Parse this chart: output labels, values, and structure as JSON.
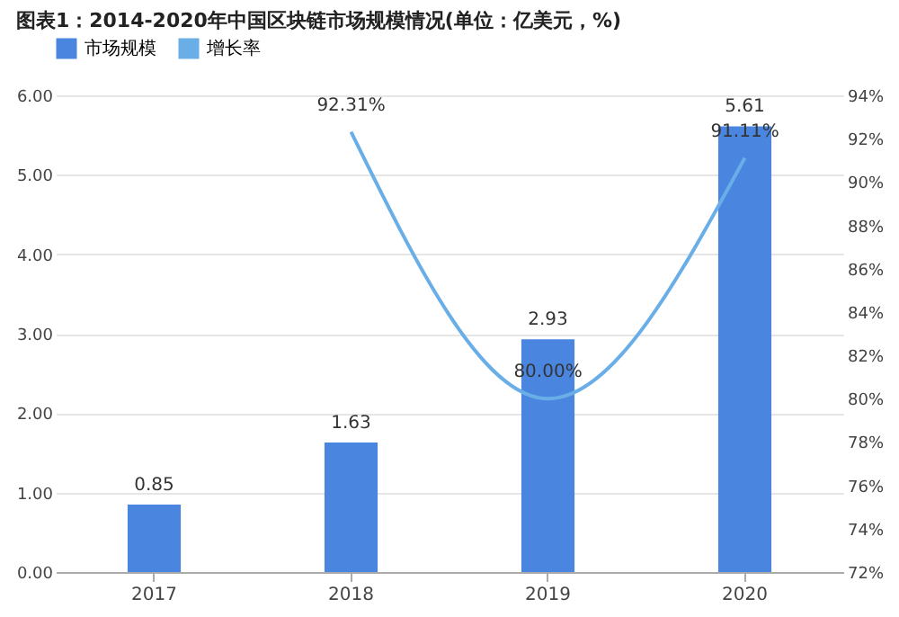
{
  "chart_data": {
    "type": "bar",
    "title": "图表1：2014-2020年中国区块链市场规模情况(单位：亿美元，%)",
    "categories": [
      "2017",
      "2018",
      "2019",
      "2020"
    ],
    "series": [
      {
        "name": "市场规模",
        "color": "#4a86e0",
        "values": [
          0.85,
          1.63,
          2.93,
          5.61
        ],
        "value_labels": [
          "0.85",
          "1.63",
          "2.93",
          "5.61"
        ]
      },
      {
        "name": "增长率",
        "type": "line",
        "axis": "y2",
        "color": "#6aaee8",
        "values": [
          null,
          92.31,
          80.0,
          91.11
        ],
        "value_labels": [
          null,
          "92.31%",
          "80.00%",
          "91.11%"
        ]
      }
    ],
    "ylim": [
      0,
      6
    ],
    "yticks": [
      {
        "value": 0,
        "label": "0.00"
      },
      {
        "value": 1,
        "label": "1.00"
      },
      {
        "value": 2,
        "label": "2.00"
      },
      {
        "value": 3,
        "label": "3.00"
      },
      {
        "value": 4,
        "label": "4.00"
      },
      {
        "value": 5,
        "label": "5.00"
      },
      {
        "value": 6,
        "label": "6.00"
      }
    ],
    "y2lim": [
      72,
      94
    ],
    "y2ticks": [
      {
        "value": 72,
        "label": "72%"
      },
      {
        "value": 74,
        "label": "74%"
      },
      {
        "value": 76,
        "label": "76%"
      },
      {
        "value": 78,
        "label": "78%"
      },
      {
        "value": 80,
        "label": "80%"
      },
      {
        "value": 82,
        "label": "82%"
      },
      {
        "value": 84,
        "label": "84%"
      },
      {
        "value": 86,
        "label": "86%"
      },
      {
        "value": 88,
        "label": "88%"
      },
      {
        "value": 90,
        "label": "90%"
      },
      {
        "value": 92,
        "label": "92%"
      },
      {
        "value": 94,
        "label": "94%"
      }
    ],
    "grid": "y",
    "legend": "top"
  }
}
